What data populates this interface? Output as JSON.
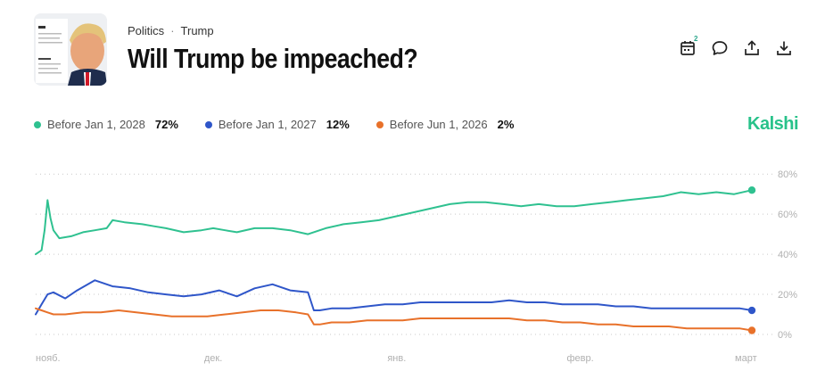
{
  "header": {
    "category": "Politics",
    "subcategory": "Trump",
    "title": "Will Trump be impeached?",
    "calendar_badge": "2"
  },
  "brand": "Kalshi",
  "icons": [
    "calendar-icon",
    "comment-icon",
    "share-icon",
    "download-icon"
  ],
  "colors": {
    "green": "#2fc190",
    "blue": "#2f56c9",
    "orange": "#e8712a",
    "brand": "#28c28a"
  },
  "chart_data": {
    "type": "line",
    "title": "",
    "xlabel": "",
    "ylabel": "",
    "ylim": [
      0,
      85
    ],
    "yticks": [
      0,
      20,
      40,
      60,
      80
    ],
    "ytick_labels": [
      "0%",
      "20%",
      "40%",
      "60%",
      "80%"
    ],
    "xtick_labels": [
      "нояб.",
      "дек.",
      "янв.",
      "февр.",
      "март"
    ],
    "xtick_positions": [
      0,
      30,
      61,
      92,
      120
    ],
    "grid": true,
    "legend_position": "top-left",
    "series": [
      {
        "name": "Before Jan 1, 2028",
        "display": "72%",
        "color": "#2fc190",
        "x": [
          0,
          1,
          1.5,
          2,
          2.5,
          3,
          4,
          6,
          8,
          10,
          12,
          13,
          15,
          18,
          20,
          22,
          25,
          28,
          30,
          32,
          34,
          37,
          40,
          43,
          46,
          49,
          52,
          55,
          58,
          61,
          64,
          67,
          70,
          73,
          76,
          79,
          82,
          85,
          88,
          91,
          94,
          97,
          100,
          103,
          106,
          109,
          112,
          115,
          118,
          121
        ],
        "values": [
          40,
          42,
          52,
          67,
          58,
          52,
          48,
          49,
          51,
          52,
          53,
          57,
          56,
          55,
          54,
          53,
          51,
          52,
          53,
          52,
          51,
          53,
          53,
          52,
          50,
          53,
          55,
          56,
          57,
          59,
          61,
          63,
          65,
          66,
          66,
          65,
          64,
          65,
          64,
          64,
          65,
          66,
          67,
          68,
          69,
          71,
          70,
          71,
          70,
          72
        ]
      },
      {
        "name": "Before Jan 1, 2027",
        "display": "12%",
        "color": "#2f56c9",
        "x": [
          0,
          1,
          2,
          3,
          5,
          7,
          10,
          13,
          16,
          19,
          22,
          25,
          28,
          31,
          34,
          37,
          40,
          43,
          46,
          47,
          48,
          50,
          53,
          56,
          59,
          62,
          65,
          68,
          71,
          74,
          77,
          80,
          83,
          86,
          89,
          92,
          95,
          98,
          101,
          104,
          107,
          110,
          113,
          116,
          119,
          121
        ],
        "values": [
          10,
          15,
          20,
          21,
          18,
          22,
          27,
          24,
          23,
          21,
          20,
          19,
          20,
          22,
          19,
          23,
          25,
          22,
          21,
          12,
          12,
          13,
          13,
          14,
          15,
          15,
          16,
          16,
          16,
          16,
          16,
          17,
          16,
          16,
          15,
          15,
          15,
          14,
          14,
          13,
          13,
          13,
          13,
          13,
          13,
          12
        ]
      },
      {
        "name": "Before Jun 1, 2026",
        "display": "2%",
        "color": "#e8712a",
        "x": [
          0,
          1,
          2,
          3,
          5,
          8,
          11,
          14,
          17,
          20,
          23,
          26,
          29,
          32,
          35,
          38,
          41,
          44,
          46,
          47,
          48,
          50,
          53,
          56,
          59,
          62,
          65,
          68,
          71,
          74,
          77,
          80,
          83,
          86,
          89,
          92,
          95,
          98,
          101,
          104,
          107,
          110,
          113,
          116,
          119,
          121
        ],
        "values": [
          13,
          12,
          11,
          10,
          10,
          11,
          11,
          12,
          11,
          10,
          9,
          9,
          9,
          10,
          11,
          12,
          12,
          11,
          10,
          5,
          5,
          6,
          6,
          7,
          7,
          7,
          8,
          8,
          8,
          8,
          8,
          8,
          7,
          7,
          6,
          6,
          5,
          5,
          4,
          4,
          4,
          3,
          3,
          3,
          3,
          2
        ]
      }
    ]
  }
}
